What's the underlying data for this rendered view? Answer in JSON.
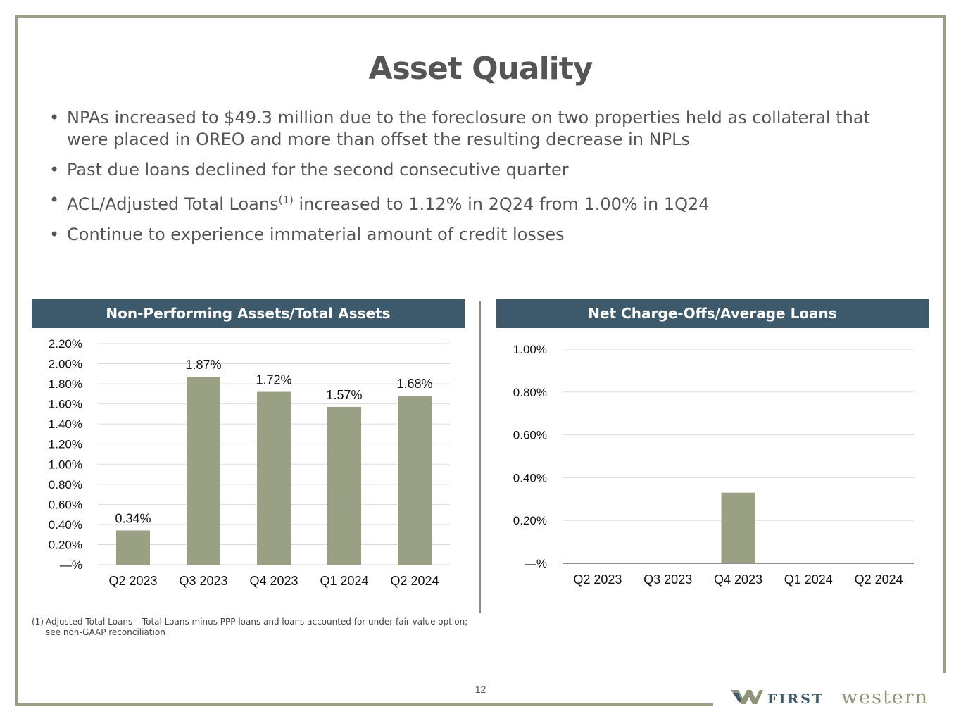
{
  "slide": {
    "title": "Asset Quality",
    "page_number": "12",
    "bullets": [
      {
        "text": "NPAs increased to $49.3 million due to the foreclosure on two properties held as collateral that were placed in OREO and more than offset the resulting decrease in NPLs"
      },
      {
        "text": "Past due loans declined for the second consecutive quarter"
      },
      {
        "text_before": "ACL/Adjusted Total Loans",
        "sup": "(1)",
        "text_after": " increased to 1.12% in 2Q24 from 1.00% in 1Q24"
      },
      {
        "text": "Continue to experience immaterial amount of credit losses"
      }
    ],
    "footnote": {
      "marker": "(1)",
      "text": "Adjusted Total Loans – Total Loans minus PPP loans and loans accounted for under fair value option; see non-GAAP reconciliation"
    },
    "logo": {
      "first": "FIRST",
      "western": "western"
    }
  },
  "colors": {
    "bar": "#9aa084",
    "header_bg": "#3d5a6c",
    "frame": "#9aa088",
    "gridline": "#dddddd"
  },
  "chart_data": [
    {
      "type": "bar",
      "title": "Non-Performing Assets/Total Assets",
      "categories": [
        "Q2 2023",
        "Q3 2023",
        "Q4 2023",
        "Q1 2024",
        "Q2 2024"
      ],
      "values": [
        0.34,
        1.87,
        1.72,
        1.57,
        1.68
      ],
      "data_labels": [
        "0.34%",
        "1.87%",
        "1.72%",
        "1.57%",
        "1.68%"
      ],
      "y_ticks": [
        0,
        0.2,
        0.4,
        0.6,
        0.8,
        1.0,
        1.2,
        1.4,
        1.6,
        1.8,
        2.0,
        2.2
      ],
      "y_tick_labels": [
        "—%",
        "0.20%",
        "0.40%",
        "0.60%",
        "0.80%",
        "1.00%",
        "1.20%",
        "1.40%",
        "1.60%",
        "1.80%",
        "2.00%",
        "2.20%"
      ],
      "ylim": [
        0,
        2.2
      ],
      "xlabel": "",
      "ylabel": "",
      "grid": true
    },
    {
      "type": "bar",
      "title": "Net Charge-Offs/Average Loans",
      "categories": [
        "Q2 2023",
        "Q3 2023",
        "Q4 2023",
        "Q1 2024",
        "Q2 2024"
      ],
      "values": [
        0,
        0,
        0.33,
        0,
        0
      ],
      "y_ticks": [
        0,
        0.2,
        0.4,
        0.6,
        0.8,
        1.0
      ],
      "y_tick_labels": [
        "—%",
        "0.20%",
        "0.40%",
        "0.60%",
        "0.80%",
        "1.00%"
      ],
      "ylim": [
        0,
        1.0
      ],
      "xlabel": "",
      "ylabel": "",
      "grid": true
    }
  ]
}
